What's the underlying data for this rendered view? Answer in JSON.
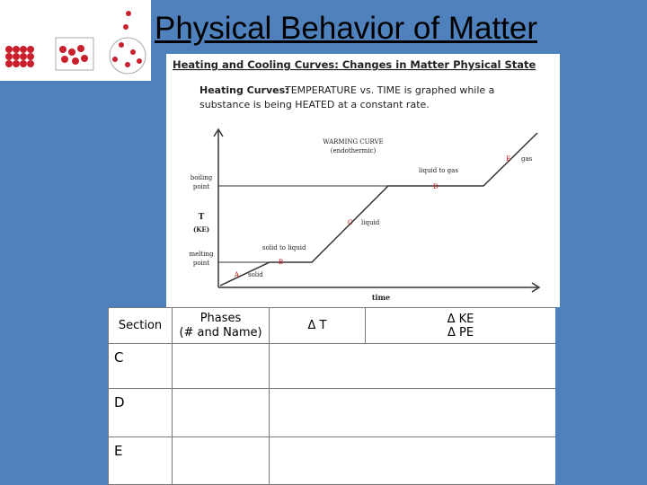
{
  "header": {
    "title": "Physical Behavior of Matter"
  },
  "figure": {
    "heading": "Heating and Cooling Curves: Changes in Matter Physical State",
    "description": {
      "lead": "Heating Curves:",
      "lines": [
        "TEMPERATURE vs. TIME is graphed while a",
        "substance is being HEATED at a constant rate."
      ]
    },
    "graph": {
      "title": "WARMING CURVE",
      "subtitle": "(endothermic)",
      "y_label": "T",
      "y_sublabel": "(KE)",
      "x_label": "time",
      "boiling": [
        "boiling",
        "point"
      ],
      "melting": [
        "melting",
        "point"
      ],
      "points": [
        {
          "letter": "A",
          "label": "solid"
        },
        {
          "letter": "B",
          "label": "solid to liquid"
        },
        {
          "letter": "C",
          "label": "liquid"
        },
        {
          "letter": "D",
          "label": "liquid to gas"
        },
        {
          "letter": "E",
          "label": "gas"
        }
      ]
    }
  },
  "table": {
    "header": [
      "Section",
      "Phases",
      "(# and Name)",
      "Δ T",
      "Δ KE",
      "Δ PE"
    ],
    "rows": [
      "C",
      "D",
      "E"
    ]
  }
}
